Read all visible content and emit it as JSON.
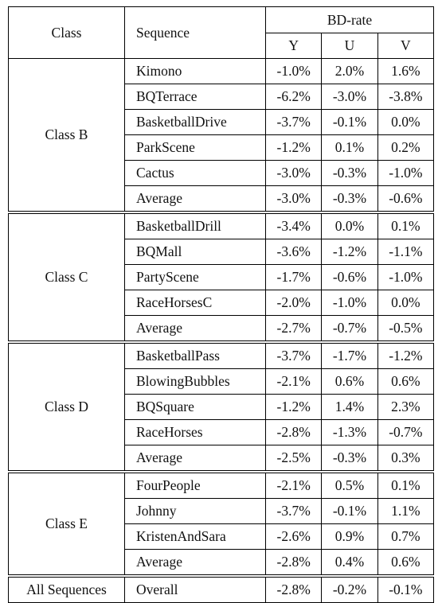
{
  "header": {
    "class": "Class",
    "sequence": "Sequence",
    "bdrate": "BD-rate",
    "y": "Y",
    "u": "U",
    "v": "V"
  },
  "groups": [
    {
      "name": "Class B",
      "rows": [
        {
          "seq": "Kimono",
          "y": "-1.0%",
          "u": "2.0%",
          "v": "1.6%"
        },
        {
          "seq": "BQTerrace",
          "y": "-6.2%",
          "u": "-3.0%",
          "v": "-3.8%"
        },
        {
          "seq": "BasketballDrive",
          "y": "-3.7%",
          "u": "-0.1%",
          "v": "0.0%"
        },
        {
          "seq": "ParkScene",
          "y": "-1.2%",
          "u": "0.1%",
          "v": "0.2%"
        },
        {
          "seq": "Cactus",
          "y": "-3.0%",
          "u": "-0.3%",
          "v": "-1.0%"
        },
        {
          "seq": "Average",
          "y": "-3.0%",
          "u": "-0.3%",
          "v": "-0.6%"
        }
      ]
    },
    {
      "name": "Class C",
      "rows": [
        {
          "seq": "BasketballDrill",
          "y": "-3.4%",
          "u": "0.0%",
          "v": "0.1%"
        },
        {
          "seq": "BQMall",
          "y": "-3.6%",
          "u": "-1.2%",
          "v": "-1.1%"
        },
        {
          "seq": "PartyScene",
          "y": "-1.7%",
          "u": "-0.6%",
          "v": "-1.0%"
        },
        {
          "seq": "RaceHorsesC",
          "y": "-2.0%",
          "u": "-1.0%",
          "v": "0.0%"
        },
        {
          "seq": "Average",
          "y": "-2.7%",
          "u": "-0.7%",
          "v": "-0.5%"
        }
      ]
    },
    {
      "name": "Class D",
      "rows": [
        {
          "seq": "BasketballPass",
          "y": "-3.7%",
          "u": "-1.7%",
          "v": "-1.2%"
        },
        {
          "seq": "BlowingBubbles",
          "y": "-2.1%",
          "u": "0.6%",
          "v": "0.6%"
        },
        {
          "seq": "BQSquare",
          "y": "-1.2%",
          "u": "1.4%",
          "v": "2.3%"
        },
        {
          "seq": "RaceHorses",
          "y": "-2.8%",
          "u": "-1.3%",
          "v": "-0.7%"
        },
        {
          "seq": "Average",
          "y": "-2.5%",
          "u": "-0.3%",
          "v": "0.3%"
        }
      ]
    },
    {
      "name": "Class E",
      "rows": [
        {
          "seq": "FourPeople",
          "y": "-2.1%",
          "u": "0.5%",
          "v": "0.1%"
        },
        {
          "seq": "Johnny",
          "y": "-3.7%",
          "u": "-0.1%",
          "v": "1.1%"
        },
        {
          "seq": "KristenAndSara",
          "y": "-2.6%",
          "u": "0.9%",
          "v": "0.7%"
        },
        {
          "seq": "Average",
          "y": "-2.8%",
          "u": "0.4%",
          "v": "0.6%"
        }
      ]
    },
    {
      "name": "All Sequences",
      "rows": [
        {
          "seq": "Overall",
          "y": "-2.8%",
          "u": "-0.2%",
          "v": "-0.1%"
        }
      ]
    }
  ]
}
